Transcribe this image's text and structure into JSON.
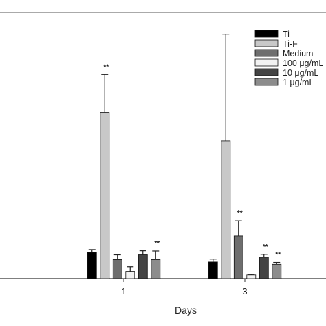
{
  "chart_data": {
    "type": "bar",
    "xlabel": "Days",
    "ylabel": "",
    "ylim": [
      0,
      100
    ],
    "grid": false,
    "legend_position": "top-right",
    "categories": [
      "1",
      "3"
    ],
    "series": [
      {
        "name": "Ti",
        "color": "#000000",
        "values": [
          11,
          7
        ],
        "errors": [
          1.2,
          1.2
        ]
      },
      {
        "name": "Ti-F",
        "color": "#c8c8c8",
        "values": [
          70,
          58
        ],
        "errors": [
          16,
          45
        ]
      },
      {
        "name": "Medium",
        "color": "#6e6e6e",
        "values": [
          8,
          18
        ],
        "errors": [
          2,
          6.3
        ]
      },
      {
        "name": "100 μg/mL",
        "color": "#f2f2f2",
        "values": [
          3,
          1.5
        ],
        "errors": [
          2,
          0.3
        ]
      },
      {
        "name": "10 μg/mL",
        "color": "#444444",
        "values": [
          10,
          9
        ],
        "errors": [
          1.7,
          1.2
        ]
      },
      {
        "name": "1 μg/mL",
        "color": "#8c8c8c",
        "values": [
          8,
          6
        ],
        "errors": [
          3.6,
          0.8
        ]
      }
    ],
    "annotations": [
      {
        "text": "**",
        "category": "1",
        "series": "Ti-F"
      },
      {
        "text": "**",
        "category": "1",
        "series": "1 μg/mL"
      },
      {
        "text": "**",
        "category": "3",
        "series": "Medium"
      },
      {
        "text": "**",
        "category": "3",
        "series": "10 μg/mL"
      },
      {
        "text": "**",
        "category": "3",
        "series": "1 μg/mL"
      }
    ]
  }
}
